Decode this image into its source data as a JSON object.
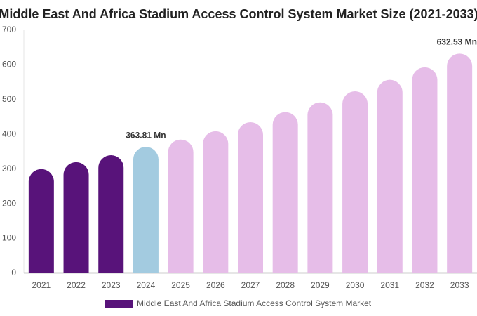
{
  "chart_data": {
    "type": "bar",
    "title": "Middle East And Africa Stadium Access Control System Market Size (2021-2033)",
    "categories": [
      "2021",
      "2022",
      "2023",
      "2024",
      "2025",
      "2026",
      "2027",
      "2028",
      "2029",
      "2030",
      "2031",
      "2032",
      "2033"
    ],
    "series": [
      {
        "name": "Middle East And Africa Stadium Access Control System Market",
        "color": "#58137a",
        "values": [
          300,
          320,
          340,
          363.81,
          385,
          409,
          435,
          464,
          492,
          524,
          557,
          593,
          632.53
        ],
        "value_labels": [
          null,
          null,
          null,
          "363.81 Mn",
          null,
          null,
          null,
          null,
          null,
          null,
          null,
          null,
          "632.53 Mn"
        ],
        "bar_colors": [
          "#58137a",
          "#58137a",
          "#58137a",
          "#a3cbe0",
          "#e6bde8",
          "#e6bde8",
          "#e6bde8",
          "#e6bde8",
          "#e6bde8",
          "#e6bde8",
          "#e6bde8",
          "#e6bde8",
          "#e6bde8"
        ]
      }
    ],
    "ylim": [
      0,
      700
    ],
    "yticks": [
      0,
      100,
      200,
      300,
      400,
      500,
      600,
      700
    ]
  }
}
